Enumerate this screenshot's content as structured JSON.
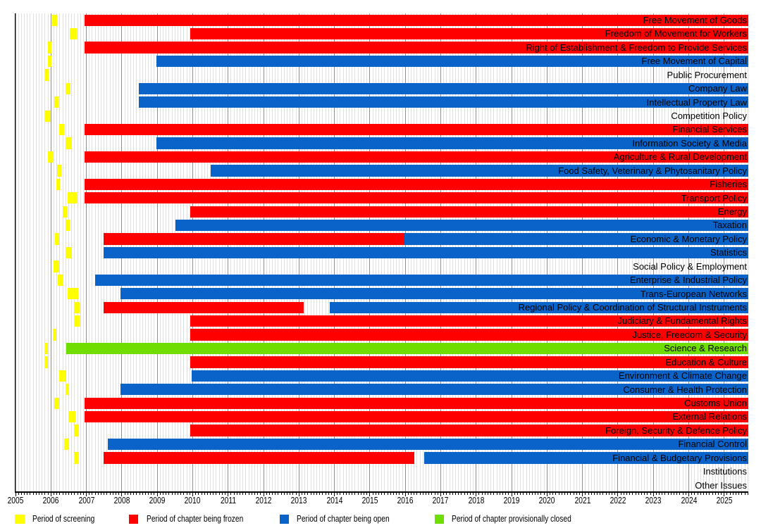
{
  "chart_data": {
    "type": "gantt",
    "title": "",
    "x_axis": {
      "min": 2005,
      "max": 2025.68,
      "tick_start": 2005,
      "tick_end": 2025,
      "minor_unit_months": 1
    },
    "legend": [
      {
        "label": "Period of screening",
        "state": "screening"
      },
      {
        "label": "Period of chapter being frozen",
        "state": "frozen"
      },
      {
        "label": "Period of chapter being open",
        "state": "open"
      },
      {
        "label": "Period of chapter provisionally closed",
        "state": "closed"
      }
    ],
    "colors": {
      "screening": "#ffff00",
      "frozen": "#ff0000",
      "open": "#0a63c8",
      "closed": "#6fdd00"
    },
    "rows": [
      {
        "label": "Free Movement of Goods",
        "screening": [
          2006.04,
          2006.18
        ],
        "segments": [
          {
            "state": "frozen",
            "start": 2006.94,
            "end": 2025.68
          }
        ]
      },
      {
        "label": "Freedom of Movement for Workers",
        "screening": [
          2006.53,
          2006.73
        ],
        "segments": [
          {
            "state": "frozen",
            "start": 2009.94,
            "end": 2025.68
          }
        ]
      },
      {
        "label": "Right of Establishment & Freedom to Provide Services",
        "screening": [
          2005.91,
          2006.02
        ],
        "segments": [
          {
            "state": "frozen",
            "start": 2006.94,
            "end": 2025.68
          }
        ]
      },
      {
        "label": "Free Movement of Capital",
        "screening": [
          2005.91,
          2006.02
        ],
        "segments": [
          {
            "state": "open",
            "start": 2008.97,
            "end": 2025.68
          }
        ]
      },
      {
        "label": "Public Procurement",
        "screening": [
          2005.81,
          2005.93
        ],
        "segments": []
      },
      {
        "label": "Company Law",
        "screening": [
          2006.41,
          2006.55
        ],
        "segments": [
          {
            "state": "open",
            "start": 2008.47,
            "end": 2025.68
          }
        ]
      },
      {
        "label": "Intellectual Property Law",
        "screening": [
          2006.09,
          2006.21
        ],
        "segments": [
          {
            "state": "open",
            "start": 2008.47,
            "end": 2025.68
          }
        ]
      },
      {
        "label": "Competition Policy",
        "screening": [
          2005.83,
          2005.97
        ],
        "segments": []
      },
      {
        "label": "Financial Services",
        "screening": [
          2006.23,
          2006.37
        ],
        "segments": [
          {
            "state": "frozen",
            "start": 2006.94,
            "end": 2025.68
          }
        ]
      },
      {
        "label": "Information Society & Media",
        "screening": [
          2006.43,
          2006.57
        ],
        "segments": [
          {
            "state": "open",
            "start": 2008.97,
            "end": 2025.68
          }
        ]
      },
      {
        "label": "Agriculture & Rural Development",
        "screening": [
          2005.91,
          2006.06
        ],
        "segments": [
          {
            "state": "frozen",
            "start": 2006.94,
            "end": 2025.68
          }
        ]
      },
      {
        "label": "Food Safety, Veterinary & Phytosanitary Policy",
        "screening": [
          2006.18,
          2006.3
        ],
        "segments": [
          {
            "state": "open",
            "start": 2010.5,
            "end": 2025.68
          }
        ]
      },
      {
        "label": "Fisheries",
        "screening": [
          2006.16,
          2006.26
        ],
        "segments": [
          {
            "state": "frozen",
            "start": 2006.94,
            "end": 2025.68
          }
        ]
      },
      {
        "label": "Transport Policy",
        "screening": [
          2006.48,
          2006.74
        ],
        "segments": [
          {
            "state": "frozen",
            "start": 2006.94,
            "end": 2025.68
          }
        ]
      },
      {
        "label": "Energy",
        "screening": [
          2006.36,
          2006.48
        ],
        "segments": [
          {
            "state": "frozen",
            "start": 2009.94,
            "end": 2025.68
          }
        ]
      },
      {
        "label": "Taxation",
        "screening": [
          2006.42,
          2006.54
        ],
        "segments": [
          {
            "state": "open",
            "start": 2009.51,
            "end": 2025.68
          }
        ]
      },
      {
        "label": "Economic & Monetary Policy",
        "screening": [
          2006.12,
          2006.24
        ],
        "segments": [
          {
            "state": "frozen",
            "start": 2007.48,
            "end": 2015.97
          },
          {
            "state": "open",
            "start": 2015.97,
            "end": 2025.68
          }
        ]
      },
      {
        "label": "Statistics",
        "screening": [
          2006.44,
          2006.58
        ],
        "segments": [
          {
            "state": "open",
            "start": 2007.48,
            "end": 2025.68
          }
        ]
      },
      {
        "label": "Social Policy & Employment",
        "screening": [
          2006.08,
          2006.24
        ],
        "segments": []
      },
      {
        "label": "Enterprise & Industrial Policy",
        "screening": [
          2006.2,
          2006.36
        ],
        "segments": [
          {
            "state": "open",
            "start": 2007.24,
            "end": 2025.68
          }
        ]
      },
      {
        "label": "Trans-European Networks",
        "screening": [
          2006.48,
          2006.76
        ],
        "segments": [
          {
            "state": "open",
            "start": 2007.97,
            "end": 2025.68
          }
        ]
      },
      {
        "label": "Regional Policy & Coordination of Structural Instruments",
        "screening": [
          2006.68,
          2006.8
        ],
        "segments": [
          {
            "state": "frozen",
            "start": 2007.48,
            "end": 2013.14
          },
          {
            "state": "open",
            "start": 2013.86,
            "end": 2025.68
          }
        ]
      },
      {
        "label": "Judiciary & Fundamental Rights",
        "screening": [
          2006.66,
          2006.8
        ],
        "segments": [
          {
            "state": "frozen",
            "start": 2009.94,
            "end": 2025.68
          }
        ]
      },
      {
        "label": "Justice, Freedom & Security",
        "screening": [
          2006.05,
          2006.16
        ],
        "segments": [
          {
            "state": "frozen",
            "start": 2009.94,
            "end": 2025.68
          }
        ]
      },
      {
        "label": "Science & Research",
        "screening": [
          2005.81,
          2005.91
        ],
        "segments": [
          {
            "state": "closed",
            "start": 2006.44,
            "end": 2025.68
          }
        ]
      },
      {
        "label": "Education & Culture",
        "screening": [
          2005.81,
          2005.91
        ],
        "segments": [
          {
            "state": "frozen",
            "start": 2009.94,
            "end": 2025.68
          }
        ]
      },
      {
        "label": "Environment & Climate Change",
        "screening": [
          2006.24,
          2006.42
        ],
        "segments": [
          {
            "state": "open",
            "start": 2009.98,
            "end": 2025.68
          }
        ]
      },
      {
        "label": "Consumer & Health Protection",
        "screening": [
          2006.42,
          2006.52
        ],
        "segments": [
          {
            "state": "open",
            "start": 2007.97,
            "end": 2025.68
          }
        ]
      },
      {
        "label": "Customs Union",
        "screening": [
          2006.1,
          2006.24
        ],
        "segments": [
          {
            "state": "frozen",
            "start": 2006.94,
            "end": 2025.68
          }
        ]
      },
      {
        "label": "External Relations",
        "screening": [
          2006.52,
          2006.7
        ],
        "segments": [
          {
            "state": "frozen",
            "start": 2006.94,
            "end": 2025.68
          }
        ]
      },
      {
        "label": "Foreign, Security & Defence Policy",
        "screening": [
          2006.68,
          2006.78
        ],
        "segments": [
          {
            "state": "frozen",
            "start": 2009.94,
            "end": 2025.68
          }
        ]
      },
      {
        "label": "Financial Control",
        "screening": [
          2006.38,
          2006.52
        ],
        "segments": [
          {
            "state": "open",
            "start": 2007.6,
            "end": 2025.68
          }
        ]
      },
      {
        "label": "Financial & Budgetary Provisions",
        "screening": [
          2006.66,
          2006.78
        ],
        "segments": [
          {
            "state": "frozen",
            "start": 2007.48,
            "end": 2016.26
          },
          {
            "state": "open",
            "start": 2016.53,
            "end": 2025.68
          }
        ]
      },
      {
        "label": "Institutions",
        "screening": null,
        "segments": []
      },
      {
        "label": "Other Issues",
        "screening": null,
        "segments": []
      }
    ]
  }
}
